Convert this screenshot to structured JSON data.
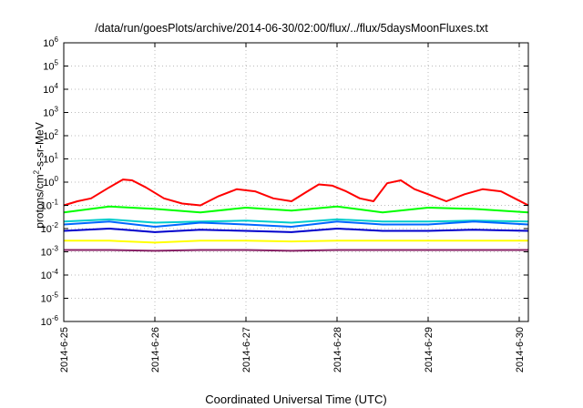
{
  "chart_data": {
    "type": "line",
    "title": "/data/run/goesPlots/archive/2014-06-30/02:00/flux/../flux/5daysMoonFluxes.txt",
    "xlabel": "Coordinated Universal Time (UTC)",
    "ylabel_pre": "protons/cm",
    "ylabel_sup": "2",
    "ylabel_post": "-s-sr-MeV",
    "y_scale": "log",
    "ylim": [
      1e-06,
      1000000.0
    ],
    "xlim": [
      0,
      5.1
    ],
    "x_tick_labels": [
      "2014-6-25",
      "2014-6-26",
      "2014-6-27",
      "2014-6-28",
      "2014-6-29",
      "2014-6-30"
    ],
    "y_tick_exponents": [
      -6,
      -5,
      -4,
      -3,
      -2,
      -1,
      0,
      1,
      2,
      3,
      4,
      5,
      6
    ],
    "grid": true,
    "series": [
      {
        "color": "#ff0000",
        "x": [
          0,
          0.15,
          0.3,
          0.5,
          0.65,
          0.75,
          0.9,
          1.1,
          1.3,
          1.5,
          1.7,
          1.9,
          2.1,
          2.3,
          2.5,
          2.65,
          2.8,
          2.95,
          3.1,
          3.25,
          3.4,
          3.55,
          3.7,
          3.85,
          4.0,
          4.2,
          4.4,
          4.6,
          4.8,
          4.95,
          5.1
        ],
        "y": [
          0.1,
          0.15,
          0.2,
          0.6,
          1.3,
          1.2,
          0.6,
          0.2,
          0.12,
          0.1,
          0.25,
          0.5,
          0.4,
          0.2,
          0.15,
          0.35,
          0.8,
          0.7,
          0.4,
          0.2,
          0.15,
          0.9,
          1.2,
          0.5,
          0.3,
          0.15,
          0.3,
          0.5,
          0.4,
          0.2,
          0.1
        ]
      },
      {
        "color": "#00ff00",
        "x": [
          0,
          0.5,
          1.0,
          1.5,
          2.0,
          2.5,
          3.0,
          3.5,
          4.0,
          4.5,
          5.1
        ],
        "y": [
          0.05,
          0.09,
          0.07,
          0.05,
          0.08,
          0.06,
          0.09,
          0.05,
          0.08,
          0.07,
          0.05
        ]
      },
      {
        "color": "#00cccc",
        "x": [
          0,
          0.5,
          1.0,
          1.5,
          2.0,
          2.5,
          3.0,
          3.5,
          4.0,
          4.5,
          5.1
        ],
        "y": [
          0.02,
          0.025,
          0.018,
          0.02,
          0.022,
          0.018,
          0.025,
          0.02,
          0.02,
          0.022,
          0.02
        ]
      },
      {
        "color": "#0066ff",
        "x": [
          0,
          0.5,
          1.0,
          1.5,
          2.0,
          2.5,
          3.0,
          3.5,
          4.0,
          4.5,
          5.1
        ],
        "y": [
          0.015,
          0.02,
          0.012,
          0.018,
          0.015,
          0.012,
          0.02,
          0.015,
          0.015,
          0.02,
          0.015
        ]
      },
      {
        "color": "#0000cc",
        "x": [
          0,
          0.5,
          1.0,
          1.5,
          2.0,
          2.5,
          3.0,
          3.5,
          4.0,
          4.5,
          5.1
        ],
        "y": [
          0.008,
          0.01,
          0.007,
          0.009,
          0.008,
          0.007,
          0.01,
          0.008,
          0.008,
          0.009,
          0.008
        ]
      },
      {
        "color": "#ffff00",
        "x": [
          0,
          0.5,
          1.0,
          1.5,
          2.0,
          2.5,
          3.0,
          3.5,
          4.0,
          4.5,
          5.1
        ],
        "y": [
          0.003,
          0.003,
          0.0025,
          0.003,
          0.003,
          0.0028,
          0.003,
          0.003,
          0.003,
          0.003,
          0.003
        ]
      },
      {
        "color": "#882266",
        "x": [
          0,
          0.5,
          1.0,
          1.5,
          2.0,
          2.5,
          3.0,
          3.5,
          4.0,
          4.5,
          5.1
        ],
        "y": [
          0.0012,
          0.0012,
          0.0011,
          0.0012,
          0.0012,
          0.0011,
          0.0012,
          0.0012,
          0.0012,
          0.0012,
          0.0012
        ]
      }
    ]
  }
}
